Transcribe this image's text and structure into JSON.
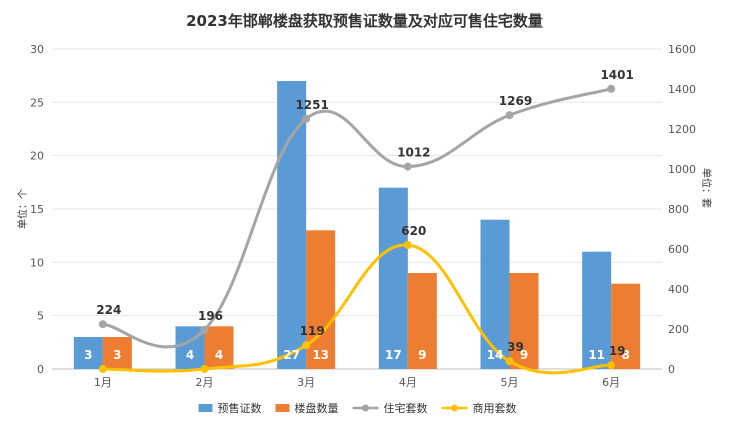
{
  "chart_data": {
    "type": "bar",
    "title": "2023年邯郸楼盘获取预售证数量及对应可售住宅数量",
    "categories": [
      "1月",
      "2月",
      "3月",
      "4月",
      "5月",
      "6月"
    ],
    "ylabel_left": "单位：个",
    "ylabel_right": "单位：套",
    "ylim_left": [
      0,
      30
    ],
    "ylim_right": [
      0,
      1600
    ],
    "yticks_left": [
      0,
      5,
      10,
      15,
      20,
      25,
      30
    ],
    "yticks_right": [
      0,
      200,
      400,
      600,
      800,
      1000,
      1200,
      1400,
      1600
    ],
    "grid": true,
    "legend_position": "bottom",
    "series": [
      {
        "name": "预售证数",
        "type": "bar",
        "axis": "left",
        "color": "#5b9bd5",
        "values": [
          3,
          4,
          27,
          17,
          14,
          11
        ]
      },
      {
        "name": "楼盘数量",
        "type": "bar",
        "axis": "left",
        "color": "#ed7d31",
        "values": [
          3,
          4,
          13,
          9,
          9,
          8
        ]
      },
      {
        "name": "住宅套数",
        "type": "line",
        "axis": "right",
        "color": "#a5a5a5",
        "values": [
          224,
          196,
          1251,
          1012,
          1269,
          1401
        ]
      },
      {
        "name": "商用套数",
        "type": "line",
        "axis": "right",
        "color": "#ffc000",
        "values": [
          0,
          0,
          119,
          620,
          39,
          19
        ],
        "labels": [
          "",
          "",
          "119",
          "620",
          "39",
          "19"
        ]
      }
    ]
  }
}
